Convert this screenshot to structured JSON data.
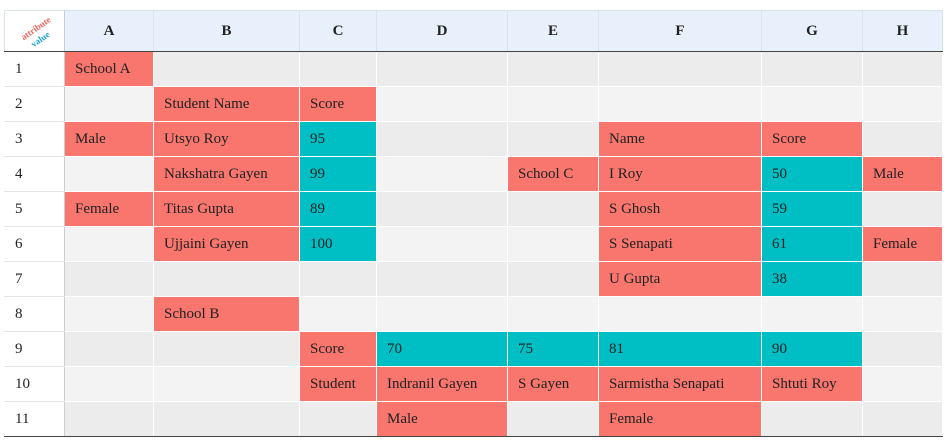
{
  "corner": {
    "attribute_label": "attribute",
    "value_label": "value"
  },
  "colors": {
    "attribute": "#f8766d",
    "value": "#00bfc4"
  },
  "columns": [
    "A",
    "B",
    "C",
    "D",
    "E",
    "F",
    "G",
    "H"
  ],
  "rows": [
    {
      "num": "1",
      "cells": [
        {
          "text": "School A",
          "type": "attribute"
        },
        {
          "text": ""
        },
        {
          "text": ""
        },
        {
          "text": ""
        },
        {
          "text": ""
        },
        {
          "text": ""
        },
        {
          "text": ""
        },
        {
          "text": ""
        }
      ]
    },
    {
      "num": "2",
      "cells": [
        {
          "text": ""
        },
        {
          "text": "Student Name",
          "type": "attribute"
        },
        {
          "text": "Score",
          "type": "attribute"
        },
        {
          "text": ""
        },
        {
          "text": ""
        },
        {
          "text": ""
        },
        {
          "text": ""
        },
        {
          "text": ""
        }
      ]
    },
    {
      "num": "3",
      "cells": [
        {
          "text": "Male",
          "type": "attribute"
        },
        {
          "text": "Utsyo Roy",
          "type": "attribute"
        },
        {
          "text": "95",
          "type": "value"
        },
        {
          "text": ""
        },
        {
          "text": ""
        },
        {
          "text": "Name",
          "type": "attribute"
        },
        {
          "text": "Score",
          "type": "attribute"
        },
        {
          "text": ""
        }
      ]
    },
    {
      "num": "4",
      "cells": [
        {
          "text": ""
        },
        {
          "text": "Nakshatra Gayen",
          "type": "attribute"
        },
        {
          "text": "99",
          "type": "value"
        },
        {
          "text": ""
        },
        {
          "text": "School C",
          "type": "attribute"
        },
        {
          "text": "I Roy",
          "type": "attribute"
        },
        {
          "text": "50",
          "type": "value"
        },
        {
          "text": "Male",
          "type": "attribute"
        }
      ]
    },
    {
      "num": "5",
      "cells": [
        {
          "text": "Female",
          "type": "attribute"
        },
        {
          "text": "Titas Gupta",
          "type": "attribute"
        },
        {
          "text": "89",
          "type": "value"
        },
        {
          "text": ""
        },
        {
          "text": ""
        },
        {
          "text": "S Ghosh",
          "type": "attribute"
        },
        {
          "text": "59",
          "type": "value"
        },
        {
          "text": ""
        }
      ]
    },
    {
      "num": "6",
      "cells": [
        {
          "text": ""
        },
        {
          "text": "Ujjaini Gayen",
          "type": "attribute"
        },
        {
          "text": "100",
          "type": "value"
        },
        {
          "text": ""
        },
        {
          "text": ""
        },
        {
          "text": "S Senapati",
          "type": "attribute"
        },
        {
          "text": "61",
          "type": "value"
        },
        {
          "text": "Female",
          "type": "attribute"
        }
      ]
    },
    {
      "num": "7",
      "cells": [
        {
          "text": ""
        },
        {
          "text": ""
        },
        {
          "text": ""
        },
        {
          "text": ""
        },
        {
          "text": ""
        },
        {
          "text": "U Gupta",
          "type": "attribute"
        },
        {
          "text": "38",
          "type": "value"
        },
        {
          "text": ""
        }
      ]
    },
    {
      "num": "8",
      "cells": [
        {
          "text": ""
        },
        {
          "text": "School B",
          "type": "attribute"
        },
        {
          "text": ""
        },
        {
          "text": ""
        },
        {
          "text": ""
        },
        {
          "text": ""
        },
        {
          "text": ""
        },
        {
          "text": ""
        }
      ]
    },
    {
      "num": "9",
      "cells": [
        {
          "text": ""
        },
        {
          "text": ""
        },
        {
          "text": "Score",
          "type": "attribute"
        },
        {
          "text": "70",
          "type": "value"
        },
        {
          "text": "75",
          "type": "value"
        },
        {
          "text": "81",
          "type": "value"
        },
        {
          "text": "90",
          "type": "value"
        },
        {
          "text": ""
        }
      ]
    },
    {
      "num": "10",
      "cells": [
        {
          "text": ""
        },
        {
          "text": ""
        },
        {
          "text": "Student",
          "type": "attribute"
        },
        {
          "text": "Indranil Gayen",
          "type": "attribute"
        },
        {
          "text": "S Gayen",
          "type": "attribute"
        },
        {
          "text": "Sarmistha Senapati",
          "type": "attribute"
        },
        {
          "text": "Shtuti Roy",
          "type": "attribute"
        },
        {
          "text": ""
        }
      ]
    },
    {
      "num": "11",
      "cells": [
        {
          "text": ""
        },
        {
          "text": ""
        },
        {
          "text": ""
        },
        {
          "text": "Male",
          "type": "attribute"
        },
        {
          "text": ""
        },
        {
          "text": "Female",
          "type": "attribute"
        },
        {
          "text": ""
        },
        {
          "text": ""
        }
      ]
    }
  ]
}
